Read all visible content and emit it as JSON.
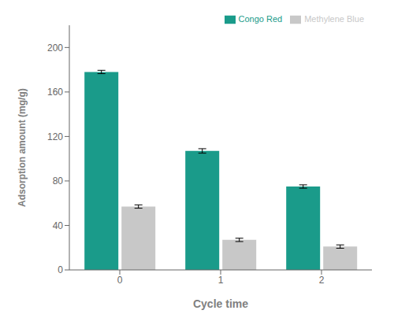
{
  "chart_data": {
    "type": "bar",
    "categories": [
      "0",
      "1",
      "2"
    ],
    "series": [
      {
        "name": "Congo Red",
        "color": "#1a9b8a",
        "values": [
          178,
          107,
          75
        ],
        "errors": [
          1.5,
          2.0,
          1.5
        ]
      },
      {
        "name": "Methylene Blue",
        "color": "#c8c8c8",
        "values": [
          57,
          27,
          21
        ],
        "errors": [
          1.5,
          1.5,
          1.5
        ]
      }
    ],
    "xlabel": "Cycle time",
    "ylabel": "Adsorption amount (mg/g)",
    "ylim": [
      0,
      220
    ],
    "yticks": [
      0,
      40,
      80,
      120,
      160,
      200
    ],
    "grid": false,
    "legend": "upper right"
  }
}
